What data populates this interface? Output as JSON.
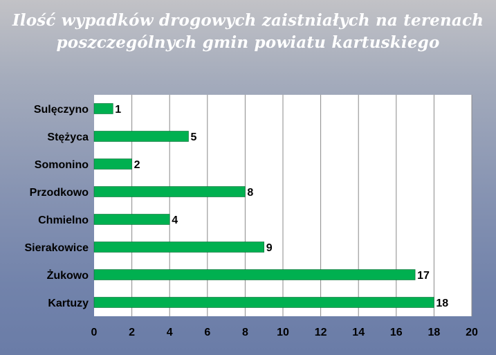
{
  "title": {
    "line1": "Ilość wypadków drogowych zaistniałych na terenach",
    "line2": "poszczególnych gmin powiatu kartuskiego"
  },
  "colors": {
    "bar": "#00b050",
    "plot_background": "#ffffff",
    "grid": "#888888",
    "title": "#ffffff"
  },
  "chart_data": {
    "type": "bar",
    "orientation": "horizontal",
    "categories": [
      "Sulęczyno",
      "Stężyca",
      "Somonino",
      "Przodkowo",
      "Chmielno",
      "Sierakowice",
      "Żukowo",
      "Kartuzy"
    ],
    "values": [
      1,
      5,
      2,
      8,
      4,
      9,
      17,
      18
    ],
    "data_labels": [
      "1",
      "5",
      "2",
      "8",
      "4",
      "9",
      "17",
      "18"
    ],
    "x_ticks": [
      "0",
      "2",
      "4",
      "6",
      "8",
      "10",
      "12",
      "14",
      "16",
      "18",
      "20"
    ],
    "xlim": [
      0,
      20
    ],
    "xlabel": "",
    "ylabel": "",
    "grid": "vertical",
    "legend": "none"
  }
}
